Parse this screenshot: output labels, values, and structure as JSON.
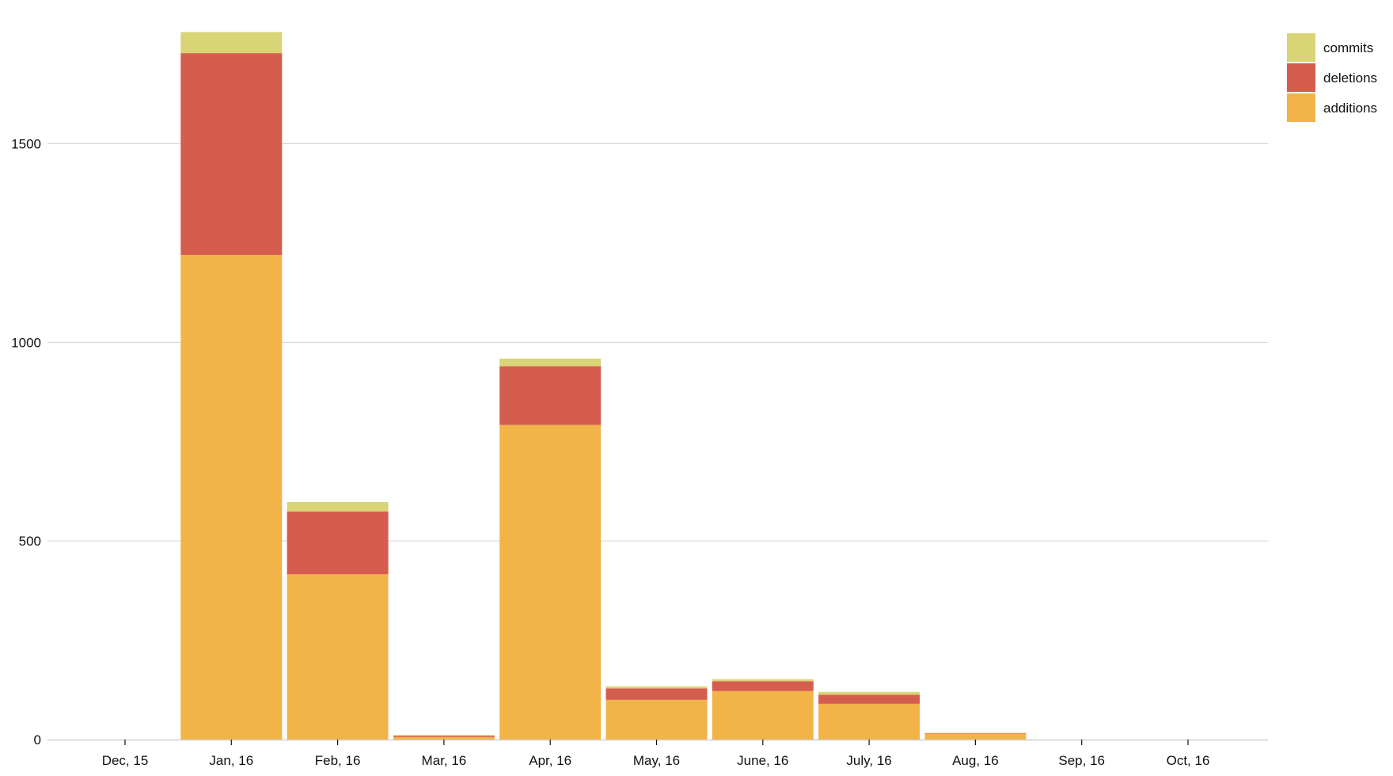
{
  "chart_data": {
    "type": "bar",
    "stacked": true,
    "title": "",
    "xlabel": "",
    "ylabel": "",
    "categories": [
      "Dec, 15",
      "Jan, 16",
      "Feb, 16",
      "Mar, 16",
      "Apr, 16",
      "May, 16",
      "June, 16",
      "July, 16",
      "Aug, 16",
      "Sep, 16",
      "Oct, 16"
    ],
    "series": [
      {
        "name": "additions",
        "color": "#f2b349",
        "values": [
          0,
          1220,
          416,
          7,
          792,
          100,
          122,
          90,
          15,
          0,
          0
        ]
      },
      {
        "name": "deletions",
        "color": "#d45d4e",
        "values": [
          0,
          508,
          158,
          3,
          148,
          29,
          25,
          23,
          1,
          0,
          0
        ]
      },
      {
        "name": "commits",
        "color": "#d9d475",
        "values": [
          0,
          53,
          24,
          1,
          19,
          5,
          5,
          7,
          1,
          0,
          0
        ]
      }
    ],
    "ylim": [
      0,
      1782
    ],
    "yticks": [
      0,
      500,
      1000,
      1500
    ],
    "yticks_labels": [
      "0",
      "500",
      "1000",
      "1500"
    ],
    "grid": true,
    "legend": {
      "position": "top-right",
      "entries": [
        "commits",
        "deletions",
        "additions"
      ]
    }
  }
}
